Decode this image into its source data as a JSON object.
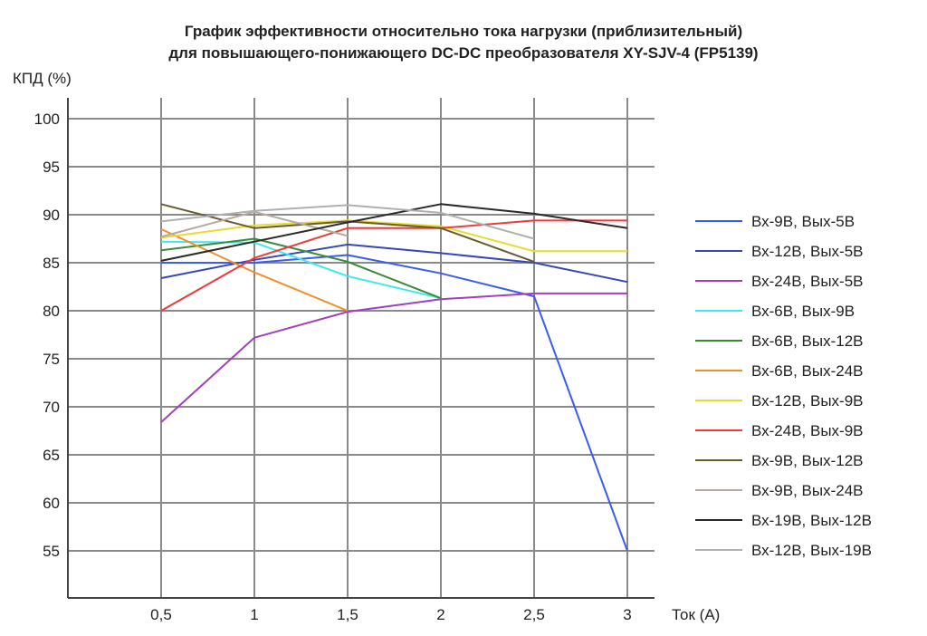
{
  "chart_data": {
    "type": "line",
    "title_line1": "График эффективности относительно тока нагрузки (приблизительный)",
    "title_line2": "для повышающего-понижающего DC-DC преобразователя XY-SJV-4 (FP5139)",
    "xlabel": "Ток (А)",
    "ylabel": "КПД (%)",
    "xlim": [
      0,
      3.15
    ],
    "ylim": [
      50,
      102
    ],
    "grid": true,
    "legend_position": "right",
    "x_ticks": [
      0.5,
      1,
      1.5,
      2,
      2.5,
      3
    ],
    "x_tick_labels": [
      "0,5",
      "1",
      "1,5",
      "2",
      "2,5",
      "3"
    ],
    "y_ticks": [
      55,
      60,
      65,
      70,
      75,
      80,
      85,
      90,
      95,
      100
    ],
    "y_tick_labels": [
      "55",
      "60",
      "65",
      "70",
      "75",
      "80",
      "85",
      "90",
      "95",
      "100"
    ],
    "series": [
      {
        "name": "Вх-9В, Вых-5В",
        "color": "#3a5cf0",
        "x": [
          0.5,
          1,
          1.5,
          2,
          2.5,
          3
        ],
        "values": [
          85.0,
          85.0,
          85.8,
          83.9,
          81.5,
          55.0
        ]
      },
      {
        "name": "Вх-12В, Вых-5В",
        "color": "#3548b8",
        "x": [
          0.5,
          1,
          1.5,
          2,
          2.5,
          3
        ],
        "values": [
          83.4,
          85.3,
          86.9,
          86.0,
          85.0,
          83.0
        ]
      },
      {
        "name": "Вх-24В, Вых-5В",
        "color": "#a040c0",
        "x": [
          0.5,
          1,
          1.5,
          2,
          2.5,
          3
        ],
        "values": [
          68.4,
          77.2,
          79.9,
          81.2,
          81.8,
          81.8
        ]
      },
      {
        "name": "Вх-6В, Вых-9В",
        "color": "#3ee8f0",
        "x": [
          0.5,
          1,
          1.5,
          2
        ],
        "values": [
          87.2,
          87.1,
          83.6,
          81.3
        ]
      },
      {
        "name": "Вх-6В, Вых-12В",
        "color": "#3a8a3a",
        "x": [
          0.5,
          1,
          1.5,
          2
        ],
        "values": [
          86.3,
          87.5,
          85.1,
          81.3
        ]
      },
      {
        "name": "Вх-6В, Вых-24В",
        "color": "#f0902a",
        "x": [
          0.5,
          1,
          1.5
        ],
        "values": [
          88.5,
          84.0,
          80.0
        ]
      },
      {
        "name": "Вх-12В, Вых-9В",
        "color": "#e8dc30",
        "x": [
          0.5,
          1,
          1.5,
          2,
          2.5,
          3
        ],
        "values": [
          87.6,
          88.9,
          89.4,
          88.8,
          86.2,
          86.2
        ]
      },
      {
        "name": "Вх-24В, Вых-9В",
        "color": "#f03a3a",
        "x": [
          0.5,
          1,
          1.5,
          2,
          2.5,
          3
        ],
        "values": [
          80.0,
          85.5,
          88.6,
          88.6,
          89.4,
          89.4
        ]
      },
      {
        "name": "Вх-9В, Вых-12В",
        "color": "#6a5a30",
        "x": [
          0.5,
          1,
          1.5,
          2,
          2.5
        ],
        "values": [
          91.1,
          88.6,
          89.3,
          88.6,
          85.1
        ]
      },
      {
        "name": "Вх-9В, Вых-24В",
        "color": "#b8a8a0",
        "x": [
          0.5,
          1,
          1.5
        ],
        "values": [
          87.7,
          90.3,
          87.8
        ]
      },
      {
        "name": "Вх-19В, Вых-12В",
        "color": "#2a2a2a",
        "x": [
          0.5,
          1,
          1.5,
          2,
          2.5,
          3
        ],
        "values": [
          85.2,
          87.2,
          89.2,
          91.1,
          90.1,
          88.6
        ]
      },
      {
        "name": "Вх-12В, Вых-19В",
        "color": "#b0b0b0",
        "x": [
          0.5,
          1,
          1.5,
          2,
          2.5
        ],
        "values": [
          89.3,
          90.4,
          91.0,
          90.2,
          87.5
        ]
      }
    ]
  }
}
